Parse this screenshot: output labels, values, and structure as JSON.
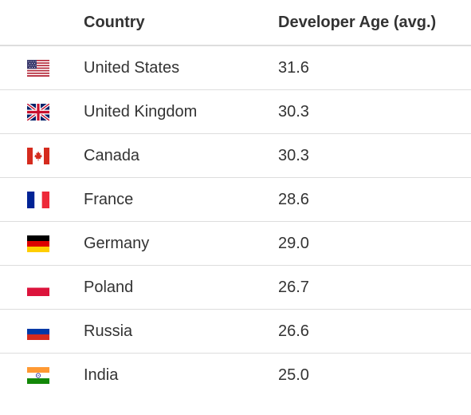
{
  "table": {
    "headers": {
      "country": "Country",
      "age": "Developer Age (avg.)"
    },
    "rows": [
      {
        "flag": "us-flag-icon",
        "country": "United States",
        "age": "31.6"
      },
      {
        "flag": "uk-flag-icon",
        "country": "United Kingdom",
        "age": "30.3"
      },
      {
        "flag": "canada-flag-icon",
        "country": "Canada",
        "age": "30.3"
      },
      {
        "flag": "france-flag-icon",
        "country": "France",
        "age": "28.6"
      },
      {
        "flag": "germany-flag-icon",
        "country": "Germany",
        "age": "29.0"
      },
      {
        "flag": "poland-flag-icon",
        "country": "Poland",
        "age": "26.7"
      },
      {
        "flag": "russia-flag-icon",
        "country": "Russia",
        "age": "26.6"
      },
      {
        "flag": "india-flag-icon",
        "country": "India",
        "age": "25.0"
      }
    ]
  }
}
